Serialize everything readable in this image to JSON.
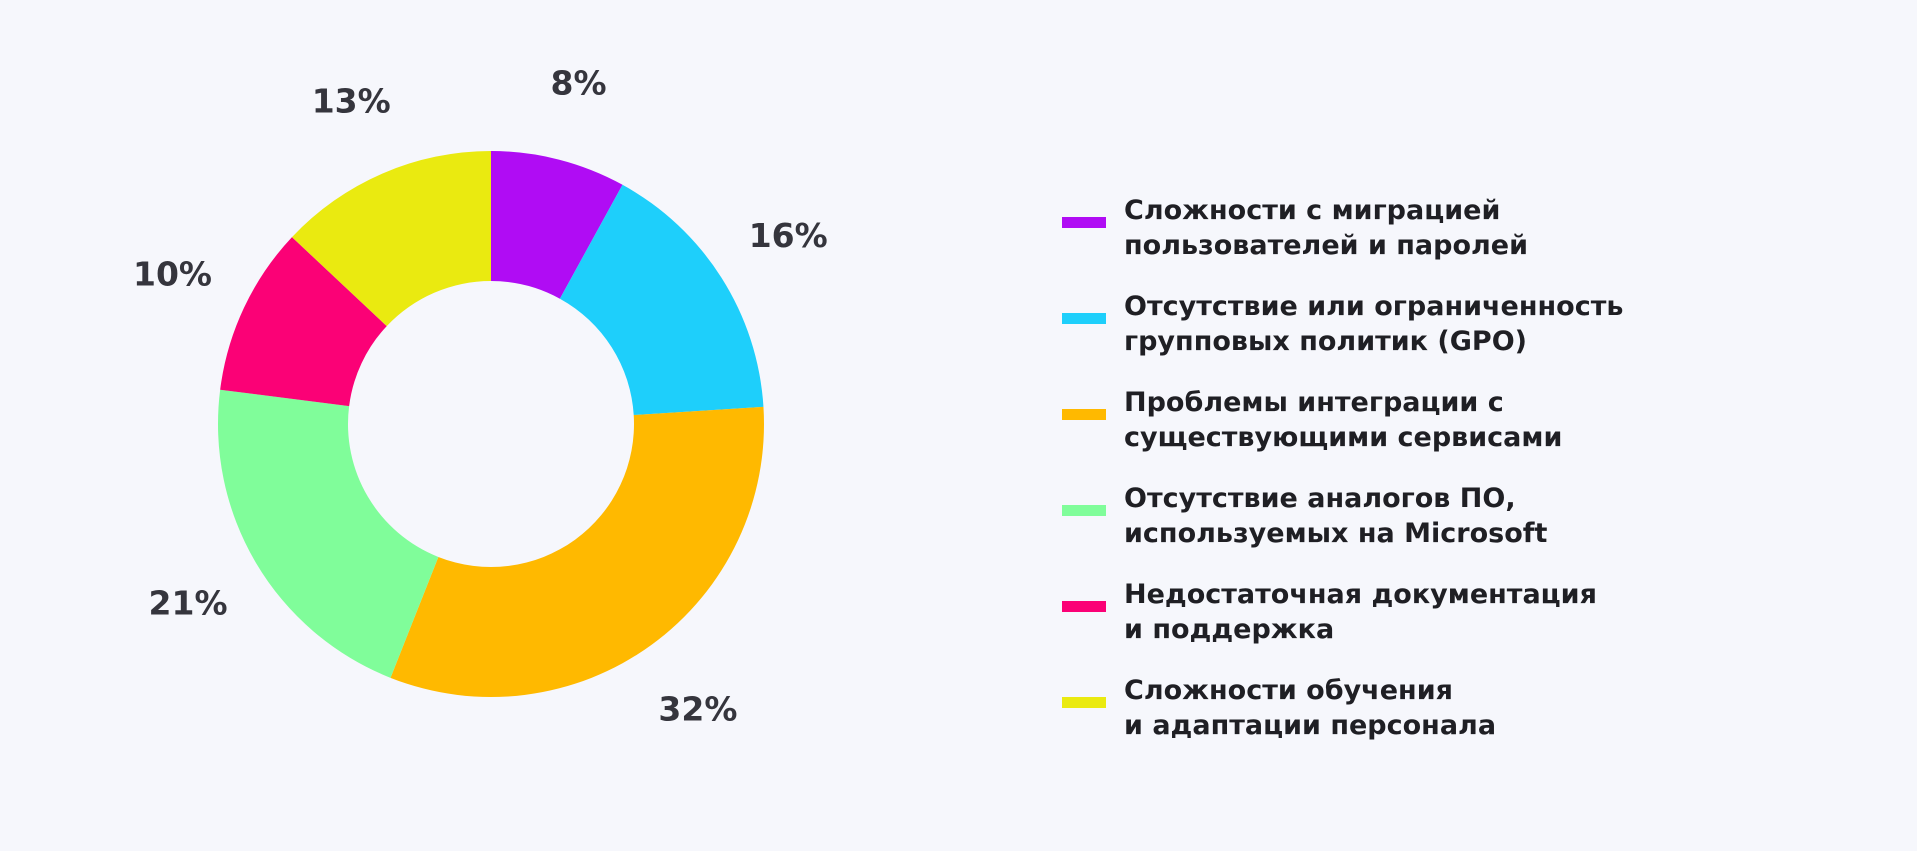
{
  "chart_data": {
    "type": "pie",
    "variant": "donut",
    "start": "top, clockwise",
    "slices": [
      {
        "label": "Сложности с миграцией\nпользователей и паролей",
        "value": 8,
        "value_label": "8%",
        "color": "#b00cf4"
      },
      {
        "label": "Отсутствие или ограниченность\nгрупповых политик (GPO)",
        "value": 16,
        "value_label": "16%",
        "color": "#1ecffb"
      },
      {
        "label": "Проблемы интеграции с\nсуществующими сервисами",
        "value": 32,
        "value_label": "32%",
        "color": "#ffb900"
      },
      {
        "label": "Отсутствие аналогов ПО,\nиспользуемых на Microsoft",
        "value": 21,
        "value_label": "21%",
        "color": "#80fd9a"
      },
      {
        "label": "Недостаточная документация\nи поддержка",
        "value": 10,
        "value_label": "10%",
        "color": "#fb0176"
      },
      {
        "label": "Сложности обучения\nи адаптации персонала",
        "value": 13,
        "value_label": "13%",
        "color": "#eaea10"
      }
    ],
    "legend_position": "right",
    "background": "#f6f7fc"
  }
}
